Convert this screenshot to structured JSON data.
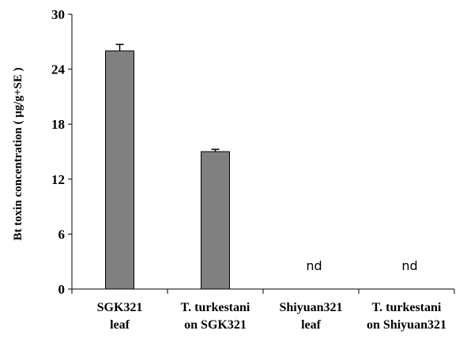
{
  "chart_data": {
    "type": "bar",
    "categories": [
      [
        "SGK321",
        "leaf"
      ],
      [
        "T. turkestani",
        "on SGK321"
      ],
      [
        "Shiyuan321",
        "leaf"
      ],
      [
        "T. turkestani",
        "on Shiyuan321"
      ]
    ],
    "values": [
      26.0,
      15.0,
      null,
      null
    ],
    "errors": [
      0.7,
      0.25,
      null,
      null
    ],
    "annotations": [
      "",
      "",
      "nd",
      "nd"
    ],
    "ylabel": "Bt toxin concentration ( μg/g+SE )",
    "xlabel": "",
    "title": "",
    "ylim": [
      0,
      30
    ],
    "yticks": [
      0,
      6,
      12,
      18,
      24,
      30
    ],
    "grid": false,
    "bar_color": "#808080",
    "bar_edge_color": "#000000"
  }
}
